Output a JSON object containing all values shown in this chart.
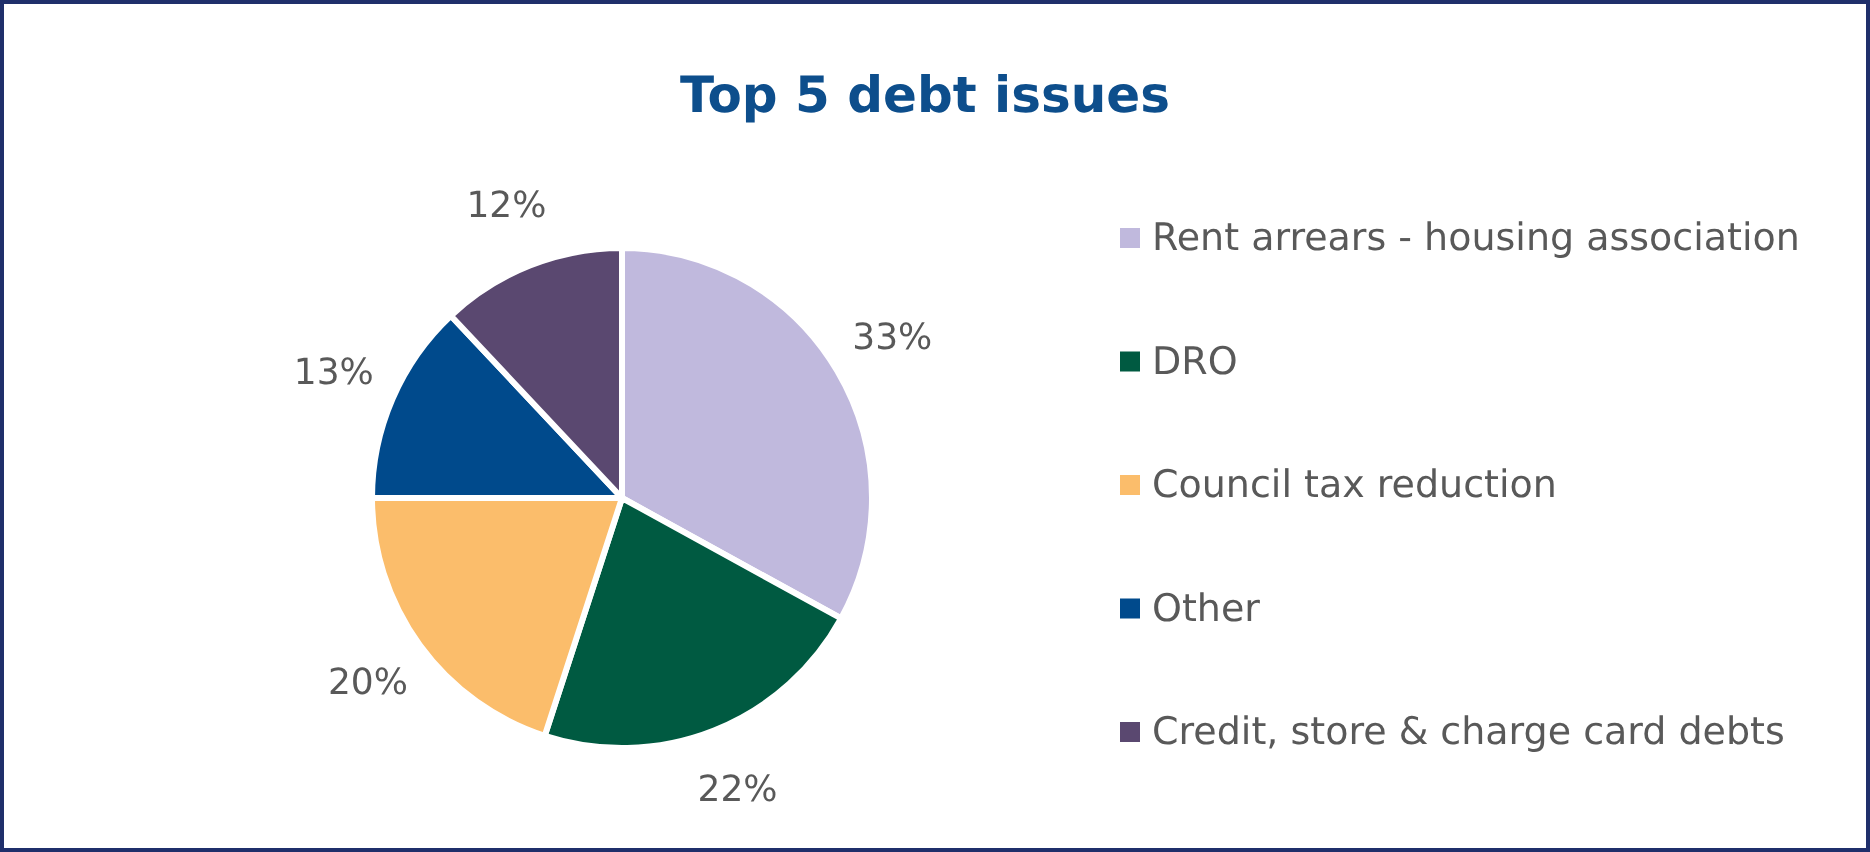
{
  "chart_data": {
    "type": "pie",
    "title": "Top 5 debt issues",
    "categories": [
      "Rent arrears - housing association",
      "DRO",
      "Council tax reduction",
      "Other",
      "Credit, store & charge card debts"
    ],
    "values": [
      33,
      22,
      20,
      13,
      12
    ],
    "colors": [
      "#c0b9dd",
      "#005a41",
      "#fbbd6b",
      "#004a8c",
      "#5a4870"
    ],
    "value_labels": [
      "33%",
      "22%",
      "20%",
      "13%",
      "12%"
    ],
    "legend": "right"
  }
}
